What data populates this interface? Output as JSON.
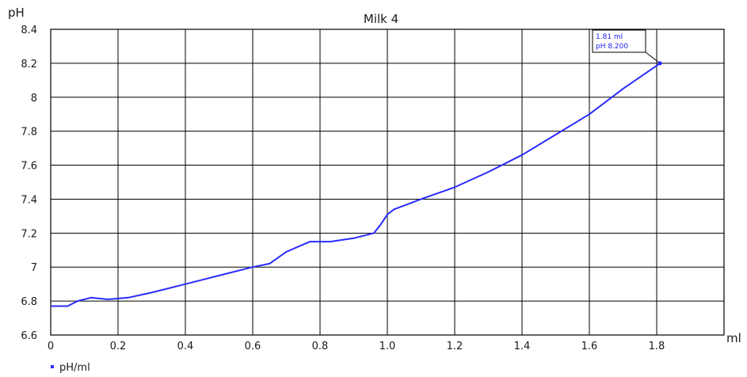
{
  "chart_data": {
    "type": "line",
    "title": "Milk 4",
    "xlabel": "ml",
    "ylabel": "pH",
    "xlim": [
      0,
      2.0
    ],
    "ylim": [
      6.6,
      8.4
    ],
    "x_ticks": [
      0,
      0.2,
      0.4,
      0.6,
      0.8,
      1.0,
      1.2,
      1.4,
      1.6,
      1.8
    ],
    "x_tick_labels": [
      "0",
      "0.2",
      "0.4",
      "0.6",
      "0.8",
      "1.0",
      "1.2",
      "1.4",
      "1.6",
      "1.8"
    ],
    "y_ticks": [
      6.6,
      6.8,
      7.0,
      7.2,
      7.4,
      7.6,
      7.8,
      8.0,
      8.2,
      8.4
    ],
    "y_tick_labels": [
      "6.6",
      "6.8",
      "7",
      "7.2",
      "7.4",
      "7.6",
      "7.8",
      "8",
      "8.2",
      "8.4"
    ],
    "grid": true,
    "legend_position": "bottom-left",
    "series": [
      {
        "name": "pH/ml",
        "color": "#2a2aff",
        "x": [
          0,
          0.05,
          0.08,
          0.12,
          0.17,
          0.23,
          0.3,
          0.4,
          0.5,
          0.6,
          0.65,
          0.7,
          0.77,
          0.8,
          0.83,
          0.9,
          0.96,
          0.98,
          1.0,
          1.02,
          1.06,
          1.1,
          1.2,
          1.3,
          1.4,
          1.5,
          1.6,
          1.7,
          1.81
        ],
        "y": [
          6.77,
          6.77,
          6.8,
          6.82,
          6.81,
          6.82,
          6.85,
          6.9,
          6.95,
          7.0,
          7.02,
          7.09,
          7.15,
          7.15,
          7.15,
          7.17,
          7.2,
          7.25,
          7.31,
          7.34,
          7.37,
          7.4,
          7.47,
          7.56,
          7.66,
          7.78,
          7.9,
          8.05,
          8.2
        ]
      }
    ],
    "annotation": {
      "x": 1.81,
      "y": 8.2,
      "lines": [
        "1.81 ml",
        "pH 8.200"
      ]
    }
  }
}
